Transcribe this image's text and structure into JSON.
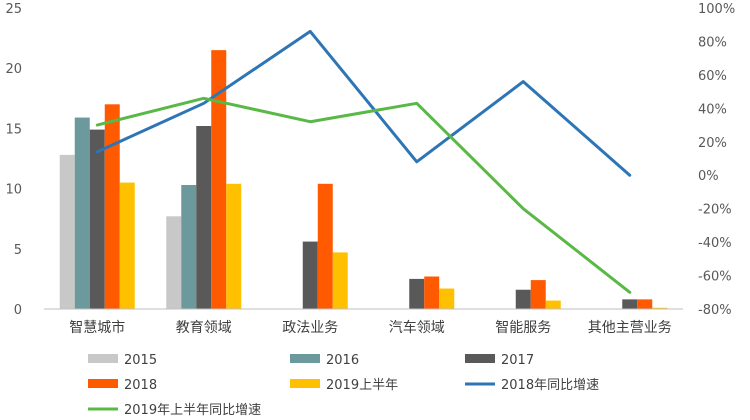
{
  "chart_data": {
    "type": "bar",
    "categories": [
      "智慧城市",
      "教育领域",
      "政法业务",
      "汽车领域",
      "智能服务",
      "其他主营业务"
    ],
    "series": [
      {
        "name": "2015",
        "type": "bar",
        "axis": "left",
        "color": "#c8c8c8",
        "values": [
          12.8,
          7.7,
          0,
          0,
          0,
          0
        ]
      },
      {
        "name": "2016",
        "type": "bar",
        "axis": "left",
        "color": "#6c9a9c",
        "values": [
          15.9,
          10.3,
          0,
          0,
          0,
          0
        ]
      },
      {
        "name": "2017",
        "type": "bar",
        "axis": "left",
        "color": "#595959",
        "values": [
          14.9,
          15.2,
          5.6,
          2.5,
          1.6,
          0.8
        ]
      },
      {
        "name": "2018",
        "type": "bar",
        "axis": "left",
        "color": "#ff5a00",
        "values": [
          17.0,
          21.5,
          10.4,
          2.7,
          2.4,
          0.8
        ]
      },
      {
        "name": "2019上半年",
        "type": "bar",
        "axis": "left",
        "color": "#ffc000",
        "values": [
          10.5,
          10.4,
          4.7,
          1.7,
          0.7,
          0.1
        ]
      },
      {
        "name": "2018年同比增速",
        "type": "line",
        "axis": "right",
        "color": "#2e75b6",
        "values": [
          14,
          43,
          86,
          8,
          56,
          0
        ]
      },
      {
        "name": "2019年上半年同比增速",
        "type": "line",
        "axis": "right",
        "color": "#5ab946",
        "values": [
          30,
          46,
          32,
          43,
          -20,
          -70
        ]
      }
    ],
    "y_left": {
      "min": 0,
      "max": 25,
      "ticks": [
        0,
        5,
        10,
        15,
        20,
        25
      ]
    },
    "y_right": {
      "min": -80,
      "max": 100,
      "ticks": [
        "-80%",
        "-60%",
        "-40%",
        "-20%",
        "0%",
        "20%",
        "40%",
        "60%",
        "80%",
        "100%"
      ]
    },
    "title": "",
    "xlabel": "",
    "ylabel": "",
    "grid": false,
    "legend_position": "bottom"
  }
}
